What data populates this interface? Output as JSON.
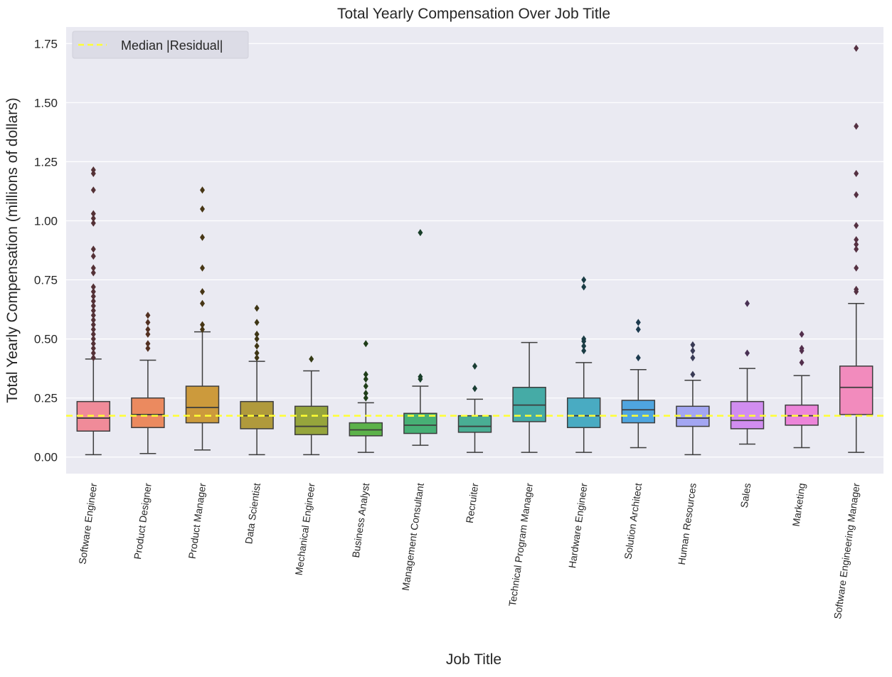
{
  "chart_data": {
    "type": "box",
    "title": "Total Yearly Compensation Over Job Title",
    "xlabel": "Job Title",
    "ylabel": "Total Yearly Compensation (millions of dollars)",
    "ylim": [
      -0.07,
      1.82
    ],
    "yticks": [
      "0.00",
      "0.25",
      "0.50",
      "0.75",
      "1.00",
      "1.25",
      "1.50",
      "1.75"
    ],
    "grid": true,
    "legend": {
      "placement": "top-left",
      "entries": [
        "Median |Residual|"
      ]
    },
    "reference_line": {
      "name": "Median |Residual|",
      "y": 0.175,
      "color": "#ffff33"
    },
    "categories": [
      "Software Engineer",
      "Product Designer",
      "Product Manager",
      "Data Scientist",
      "Mechanical Engineer",
      "Business Analyst",
      "Management Consultant",
      "Recruiter",
      "Technical Program Manager",
      "Hardware Engineer",
      "Solution Architect",
      "Human Resources",
      "Sales",
      "Marketing",
      "Software Engineering Manager"
    ],
    "colors": [
      "#f08b99",
      "#eb8a5f",
      "#cc9a3c",
      "#b09a3c",
      "#96a53c",
      "#5cb24a",
      "#47b075",
      "#49ae94",
      "#45aba6",
      "#49abc2",
      "#4fa5df",
      "#a3a6f2",
      "#d18df0",
      "#ec85d9",
      "#f28bbd"
    ],
    "boxes": [
      {
        "whislo": 0.01,
        "q1": 0.11,
        "med": 0.165,
        "q3": 0.235,
        "whishi": 0.415,
        "fliers": [
          0.42,
          0.44,
          0.46,
          0.48,
          0.5,
          0.52,
          0.54,
          0.56,
          0.58,
          0.6,
          0.62,
          0.64,
          0.66,
          0.68,
          0.7,
          0.72,
          0.78,
          0.8,
          0.85,
          0.88,
          0.99,
          1.01,
          1.03,
          1.13,
          1.2,
          1.215
        ]
      },
      {
        "whislo": 0.015,
        "q1": 0.125,
        "med": 0.18,
        "q3": 0.25,
        "whishi": 0.41,
        "fliers": [
          0.46,
          0.48,
          0.52,
          0.54,
          0.57,
          0.6
        ]
      },
      {
        "whislo": 0.03,
        "q1": 0.145,
        "med": 0.21,
        "q3": 0.3,
        "whishi": 0.53,
        "fliers": [
          0.54,
          0.56,
          0.65,
          0.7,
          0.8,
          0.93,
          1.05,
          1.13
        ]
      },
      {
        "whislo": 0.01,
        "q1": 0.12,
        "med": 0.175,
        "q3": 0.235,
        "whishi": 0.405,
        "fliers": [
          0.42,
          0.44,
          0.47,
          0.5,
          0.52,
          0.57,
          0.63
        ]
      },
      {
        "whislo": 0.01,
        "q1": 0.095,
        "med": 0.13,
        "q3": 0.215,
        "whishi": 0.365,
        "fliers": [
          0.415
        ]
      },
      {
        "whislo": 0.02,
        "q1": 0.09,
        "med": 0.115,
        "q3": 0.145,
        "whishi": 0.23,
        "fliers": [
          0.25,
          0.27,
          0.3,
          0.33,
          0.35,
          0.48
        ]
      },
      {
        "whislo": 0.05,
        "q1": 0.1,
        "med": 0.135,
        "q3": 0.185,
        "whishi": 0.3,
        "fliers": [
          0.33,
          0.34,
          0.95
        ]
      },
      {
        "whislo": 0.02,
        "q1": 0.105,
        "med": 0.13,
        "q3": 0.175,
        "whishi": 0.245,
        "fliers": [
          0.29,
          0.385
        ]
      },
      {
        "whislo": 0.02,
        "q1": 0.15,
        "med": 0.22,
        "q3": 0.295,
        "whishi": 0.485,
        "fliers": []
      },
      {
        "whislo": 0.02,
        "q1": 0.125,
        "med": 0.175,
        "q3": 0.25,
        "whishi": 0.4,
        "fliers": [
          0.45,
          0.47,
          0.49,
          0.5,
          0.72,
          0.75
        ]
      },
      {
        "whislo": 0.04,
        "q1": 0.145,
        "med": 0.2,
        "q3": 0.24,
        "whishi": 0.37,
        "fliers": [
          0.42,
          0.54,
          0.57
        ]
      },
      {
        "whislo": 0.01,
        "q1": 0.13,
        "med": 0.165,
        "q3": 0.215,
        "whishi": 0.325,
        "fliers": [
          0.35,
          0.42,
          0.45,
          0.475
        ]
      },
      {
        "whislo": 0.055,
        "q1": 0.12,
        "med": 0.155,
        "q3": 0.235,
        "whishi": 0.375,
        "fliers": [
          0.44,
          0.65
        ]
      },
      {
        "whislo": 0.04,
        "q1": 0.135,
        "med": 0.175,
        "q3": 0.22,
        "whishi": 0.345,
        "fliers": [
          0.4,
          0.45,
          0.46,
          0.52
        ]
      },
      {
        "whislo": 0.02,
        "q1": 0.18,
        "med": 0.295,
        "q3": 0.385,
        "whishi": 0.65,
        "fliers": [
          0.7,
          0.71,
          0.8,
          0.88,
          0.9,
          0.92,
          0.98,
          1.11,
          1.2,
          1.4,
          1.73
        ]
      }
    ]
  }
}
